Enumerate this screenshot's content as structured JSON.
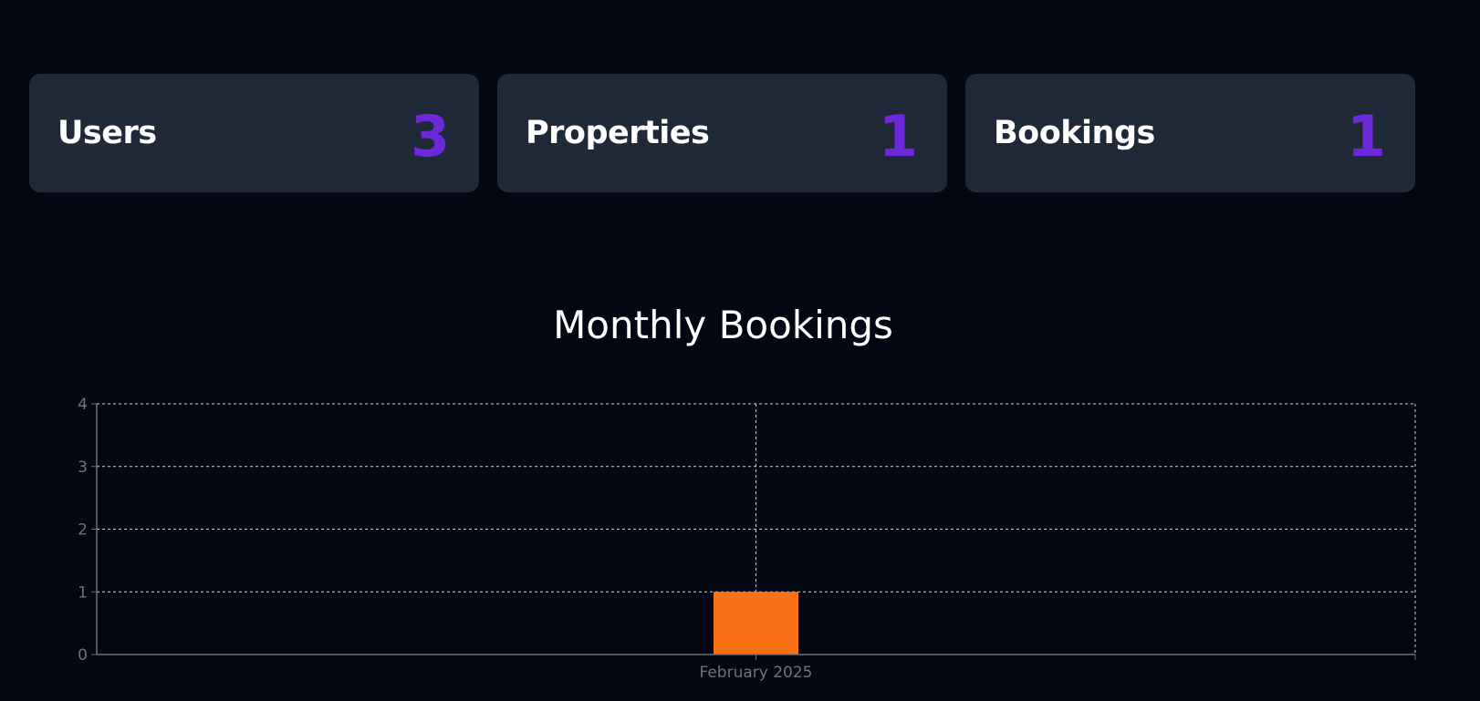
{
  "stats": [
    {
      "label": "Users",
      "value": "3"
    },
    {
      "label": "Properties",
      "value": "1"
    },
    {
      "label": "Bookings",
      "value": "1"
    }
  ],
  "colors": {
    "background": "#030712",
    "card": "#1f2937",
    "accent": "#6d28d9",
    "bar": "#f97316",
    "grid": "#cbd5e1",
    "axis": "#6b7280"
  },
  "chart_data": {
    "type": "bar",
    "title": "Monthly Bookings",
    "categories": [
      "February 2025"
    ],
    "values": [
      1
    ],
    "xlabel": "",
    "ylabel": "",
    "ylim": [
      0,
      4
    ],
    "yticks": [
      0,
      1,
      2,
      3,
      4
    ],
    "grid": true,
    "legend": "none"
  }
}
